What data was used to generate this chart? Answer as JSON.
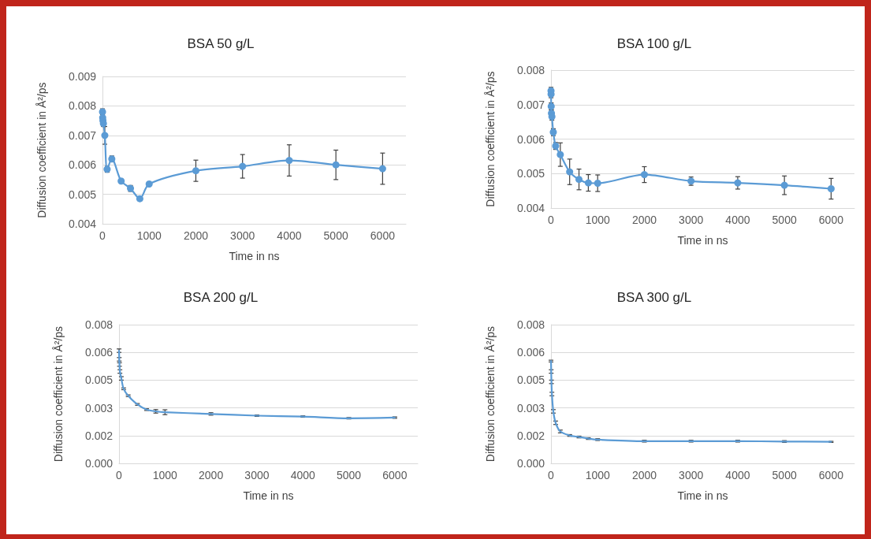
{
  "chart_data": [
    {
      "type": "line",
      "title": "BSA 50 g/L",
      "xlabel": "Time in ns",
      "ylabel": "Diffusion coefficient in Å²/ps",
      "marker": "circle",
      "grid": "y",
      "xlim": [
        0,
        6500
      ],
      "xticks": [
        0,
        1000,
        2000,
        3000,
        4000,
        5000,
        6000
      ],
      "ylim": [
        0.004,
        0.009
      ],
      "yticks": [
        0.004,
        0.005,
        0.006,
        0.007,
        0.008,
        0.009
      ],
      "series": [
        {
          "color": "#5b9bd5",
          "x": [
            1,
            5,
            10,
            20,
            50,
            100,
            200,
            400,
            600,
            800,
            1000,
            2000,
            3000,
            4000,
            5000,
            6000
          ],
          "values": [
            0.0078,
            0.0076,
            0.0075,
            0.0074,
            0.007,
            0.00585,
            0.0062,
            0.00545,
            0.0052,
            0.00485,
            0.00535,
            0.0058,
            0.00595,
            0.00615,
            0.006,
            0.00587
          ],
          "errors": [
            0.0001,
            null,
            null,
            0.0001,
            0.0003,
            0.0001,
            0.0001,
            null,
            0.0001,
            null,
            null,
            0.00036,
            0.0004,
            0.00053,
            0.0005,
            0.00053
          ]
        }
      ]
    },
    {
      "type": "line",
      "title": "BSA 100 g/L",
      "xlabel": "Time in ns",
      "ylabel": "Diffusion coefficient in Å²/ps",
      "marker": "circle",
      "grid": "y",
      "xlim": [
        0,
        6500
      ],
      "xticks": [
        0,
        1000,
        2000,
        3000,
        4000,
        5000,
        6000
      ],
      "ylim": [
        0.004,
        0.008
      ],
      "yticks": [
        0.004,
        0.005,
        0.006,
        0.007,
        0.008
      ],
      "series": [
        {
          "color": "#5b9bd5",
          "x": [
            1,
            2,
            5,
            10,
            20,
            50,
            100,
            200,
            400,
            600,
            800,
            1000,
            2000,
            3000,
            4000,
            5000,
            6000
          ],
          "values": [
            0.0074,
            0.0073,
            0.00695,
            0.00675,
            0.00665,
            0.0062,
            0.0058,
            0.00555,
            0.00505,
            0.00483,
            0.00473,
            0.00472,
            0.00497,
            0.00478,
            0.00473,
            0.00466,
            0.00456
          ],
          "errors": [
            0.0001,
            0.0001,
            0.0001,
            0.0001,
            0.0001,
            0.0001,
            0.0001,
            0.00034,
            0.00037,
            0.0003,
            0.00024,
            0.00024,
            0.00023,
            0.00012,
            0.00018,
            0.00027,
            0.0003
          ]
        }
      ]
    },
    {
      "type": "line",
      "title": "BSA 200 g/L",
      "xlabel": "Time in ns",
      "ylabel": "Diffusion coefficient in Å²/ps",
      "marker": "none",
      "grid": "y",
      "xlim": [
        0,
        6500
      ],
      "xticks": [
        0,
        1000,
        2000,
        3000,
        4000,
        5000,
        6000
      ],
      "ylim": [
        0,
        0.008
      ],
      "yticks": [
        {
          "value": 0,
          "label": "0.000"
        },
        {
          "value": 0.0016,
          "label": "0.002"
        },
        {
          "value": 0.0032,
          "label": "0.003"
        },
        {
          "value": 0.0048,
          "label": "0.005"
        },
        {
          "value": 0.0064,
          "label": "0.006"
        },
        {
          "value": 0.008,
          "label": "0.008"
        }
      ],
      "series": [
        {
          "color": "#5b9bd5",
          "x": [
            1,
            5,
            10,
            20,
            50,
            100,
            200,
            400,
            600,
            800,
            1000,
            2000,
            3000,
            4000,
            5000,
            6000
          ],
          "values": [
            0.0065,
            0.006,
            0.0057,
            0.0053,
            0.0049,
            0.0043,
            0.0039,
            0.0034,
            0.0031,
            0.003,
            0.00295,
            0.00285,
            0.00275,
            0.0027,
            0.0026,
            0.00264
          ],
          "errors": [
            0.0001,
            0.0001,
            0.0001,
            0.0001,
            0.0001,
            5e-05,
            5e-05,
            5e-05,
            5e-05,
            0.0001,
            0.00014,
            7e-05,
            4e-05,
            4e-05,
            4e-05,
            4e-05
          ]
        }
      ]
    },
    {
      "type": "line",
      "title": "BSA 300 g/L",
      "xlabel": "Time in ns",
      "ylabel": "Diffusion coefficient in Å²/ps",
      "marker": "none",
      "grid": "y",
      "xlim": [
        0,
        6500
      ],
      "xticks": [
        0,
        1000,
        2000,
        3000,
        4000,
        5000,
        6000
      ],
      "ylim": [
        0,
        0.008
      ],
      "yticks": [
        {
          "value": 0,
          "label": "0.000"
        },
        {
          "value": 0.0016,
          "label": "0.002"
        },
        {
          "value": 0.0032,
          "label": "0.003"
        },
        {
          "value": 0.0048,
          "label": "0.005"
        },
        {
          "value": 0.0064,
          "label": "0.006"
        },
        {
          "value": 0.008,
          "label": "0.008"
        }
      ],
      "series": [
        {
          "color": "#5b9bd5",
          "x": [
            1,
            5,
            10,
            20,
            50,
            100,
            200,
            400,
            600,
            800,
            1000,
            2000,
            3000,
            4000,
            5000,
            6000
          ],
          "values": [
            0.0059,
            0.0053,
            0.0047,
            0.004,
            0.003,
            0.00234,
            0.00184,
            0.00161,
            0.00152,
            0.00143,
            0.00137,
            0.00128,
            0.00128,
            0.00128,
            0.00126,
            0.00124
          ],
          "errors": [
            5e-05,
            0.0001,
            0.0001,
            0.0001,
            0.0001,
            0.0001,
            8e-05,
            5e-05,
            5e-05,
            5e-05,
            5e-05,
            5e-05,
            5e-05,
            5e-05,
            5e-05,
            3e-05
          ]
        }
      ]
    }
  ]
}
